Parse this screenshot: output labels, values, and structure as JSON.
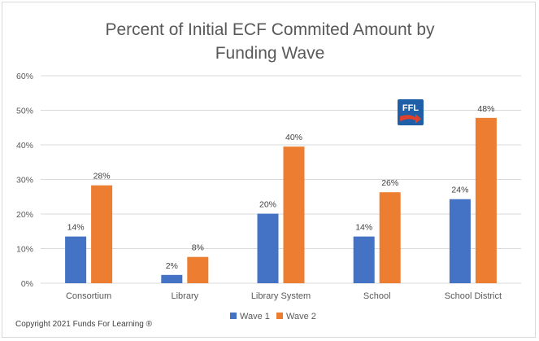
{
  "chart_data": {
    "type": "bar",
    "title_lines": [
      "Percent of Initial ECF Commited Amount by",
      "Funding Wave"
    ],
    "categories": [
      "Consortium",
      "Library",
      "Library System",
      "School",
      "School District"
    ],
    "series": [
      {
        "name": "Wave 1",
        "color": "#4472c4",
        "values": [
          13.5,
          2.4,
          20.1,
          13.5,
          24.3
        ],
        "labels": [
          "14%",
          "2%",
          "20%",
          "14%",
          "24%"
        ]
      },
      {
        "name": "Wave 2",
        "color": "#ed7d31",
        "values": [
          28.3,
          7.6,
          39.5,
          26.3,
          47.8
        ],
        "labels": [
          "28%",
          "8%",
          "40%",
          "26%",
          "48%"
        ]
      }
    ],
    "ylim": [
      0,
      60
    ],
    "yticks": [
      0,
      10,
      20,
      30,
      40,
      50,
      60
    ],
    "ytick_labels": [
      "0%",
      "10%",
      "20%",
      "30%",
      "40%",
      "50%",
      "60%"
    ],
    "grid": true,
    "legend_position": "bottom-center"
  },
  "footer": {
    "copyright": "Copyright 2021 Funds For Learning ®"
  },
  "logo": {
    "text": "FFL",
    "bg_color": "#1f5fa8",
    "arrow_color": "#e0412b"
  }
}
